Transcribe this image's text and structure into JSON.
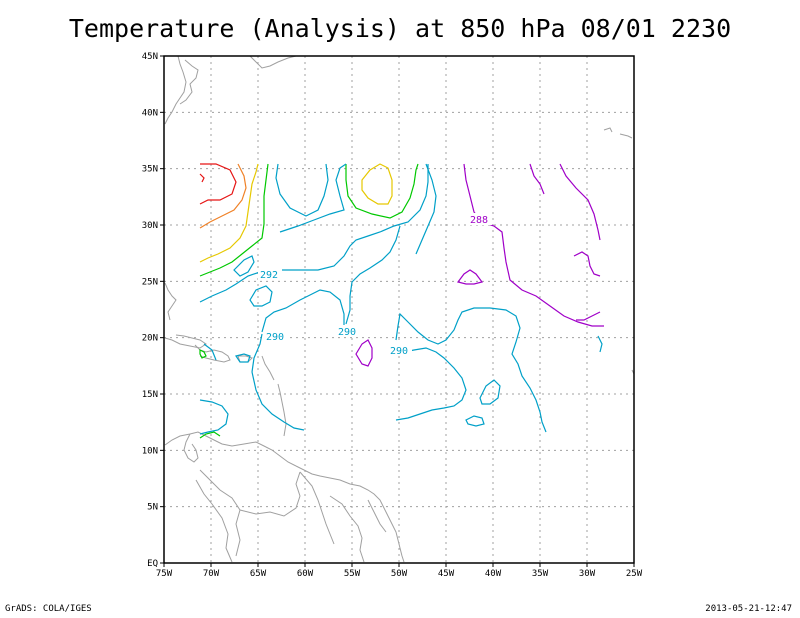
{
  "title": "Temperature (Analysis) at 850 hPa 08/01 2230",
  "footer": {
    "left": "GrADS: COLA/IGES",
    "right": "2013-05-21-12:47"
  },
  "axes": {
    "x_ticks": [
      "75W",
      "70W",
      "65W",
      "60W",
      "55W",
      "50W",
      "45W",
      "40W",
      "35W",
      "30W",
      "25W"
    ],
    "y_ticks": [
      "EQ",
      "5N",
      "10N",
      "15N",
      "20N",
      "25N",
      "30N",
      "35N",
      "40N",
      "45N"
    ]
  },
  "contour_labels": [
    {
      "text": "288",
      "color": "#a000c8"
    },
    {
      "text": "292",
      "color": "#00a0c8"
    },
    {
      "text": "290",
      "color": "#00a0c8"
    },
    {
      "text": "290",
      "color": "#00a0c8"
    },
    {
      "text": "290",
      "color": "#00a0c8"
    }
  ],
  "colors": {
    "coast": "#a0a0a0",
    "grid": "#a0a0a0",
    "c_286": "#a000c8",
    "c_290": "#00a0c8",
    "c_294": "#00c800",
    "c_296": "#e6c800",
    "c_298": "#f08228",
    "c_300": "#e61414"
  }
}
